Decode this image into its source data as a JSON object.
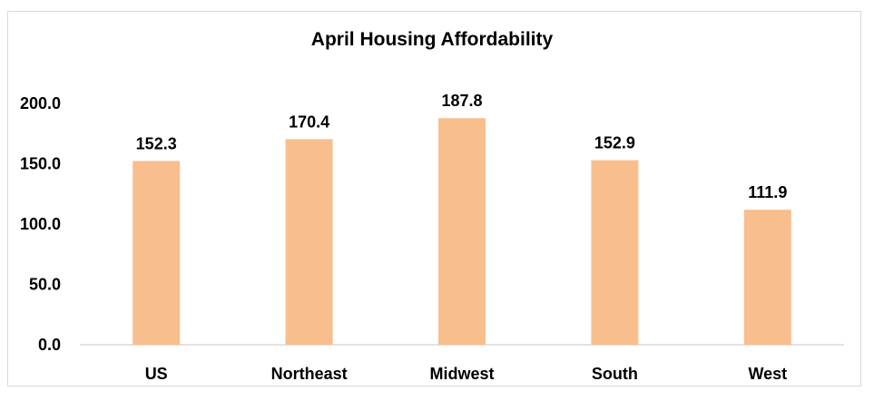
{
  "chart_data": {
    "type": "bar",
    "title": "April Housing Affordability",
    "xlabel": "",
    "ylabel": "",
    "categories": [
      "US",
      "Northeast",
      "Midwest",
      "South",
      "West"
    ],
    "values": [
      152.3,
      170.4,
      187.8,
      152.9,
      111.9
    ],
    "data_labels": [
      "152.3",
      "170.4",
      "187.8",
      "152.9",
      "111.9"
    ],
    "ylim": [
      0,
      200
    ],
    "yticks": [
      0,
      50,
      100,
      150,
      200
    ],
    "ytick_labels": [
      "0.0",
      "50.0",
      "100.0",
      "150.0",
      "200.0"
    ],
    "grid": false,
    "legend": false,
    "bar_color": "#F8BE8E",
    "axis_color": "#D9D9D9"
  }
}
